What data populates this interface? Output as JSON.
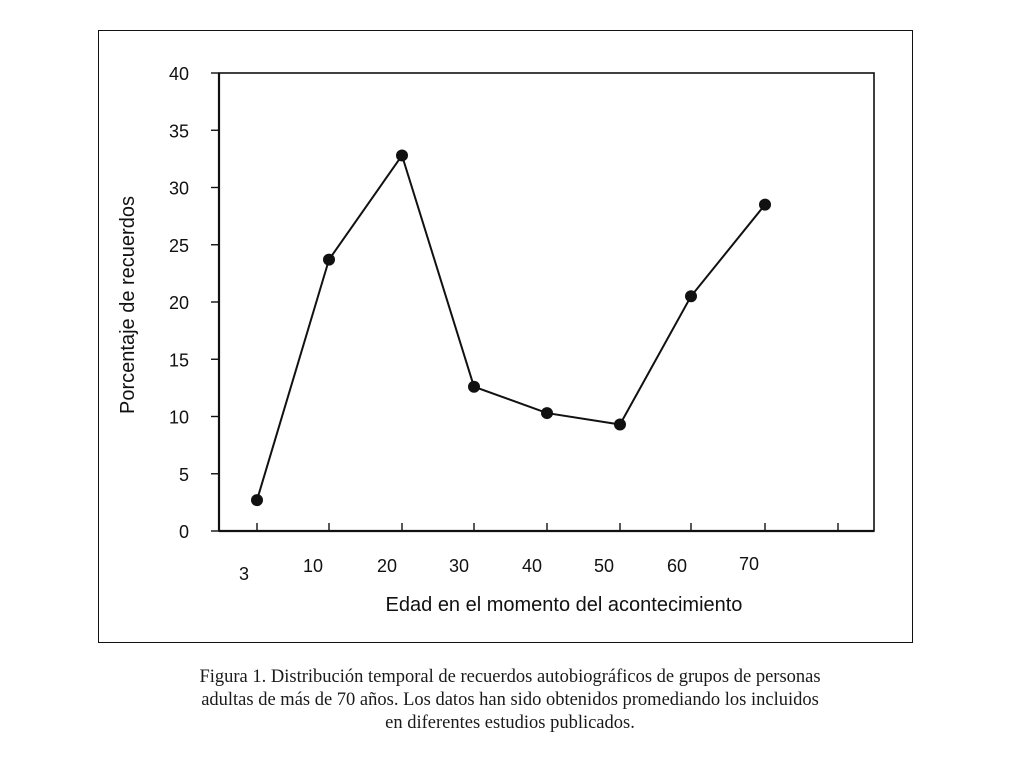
{
  "chart_data": {
    "type": "line",
    "title": "",
    "xlabel": "Edad en el momento del acontecimiento",
    "ylabel": "Porcentaje de recuerdos",
    "categories": [
      "3",
      "10",
      "20",
      "30",
      "40",
      "50",
      "60",
      "70"
    ],
    "series": [
      {
        "values": [
          2.7,
          23.7,
          32.8,
          12.6,
          10.3,
          9.3,
          20.5,
          28.5
        ]
      }
    ],
    "ylim": [
      0,
      40
    ],
    "yticks": [
      0,
      5,
      10,
      15,
      20,
      25,
      30,
      35,
      40
    ],
    "grid": false,
    "legend": "none",
    "colors": {
      "line": "#111111",
      "marker": "#111111",
      "axis": "#111111"
    }
  },
  "caption": {
    "line1": "Figura 1.  Distribución temporal de recuerdos autobiográficos de grupos de personas",
    "line2": "adultas de más de 70 años. Los datos han sido obtenidos promediando los incluidos",
    "line3": "en diferentes estudios publicados."
  }
}
